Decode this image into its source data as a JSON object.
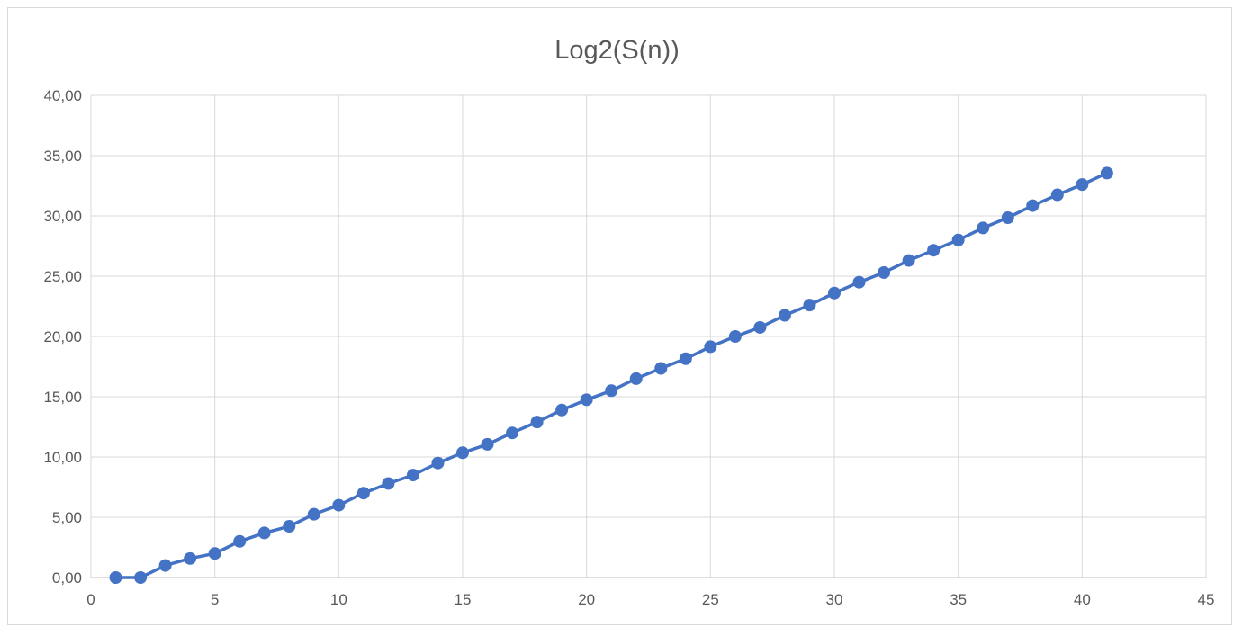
{
  "chart_data": {
    "type": "scatter",
    "title": "Log2(S(n))",
    "xlabel": "",
    "ylabel": "",
    "xlim": [
      0,
      45
    ],
    "ylim": [
      0,
      40
    ],
    "grid": true,
    "legend": "none",
    "x_ticks": [
      "0",
      "5",
      "10",
      "15",
      "20",
      "25",
      "30",
      "35",
      "40",
      "45"
    ],
    "y_ticks": [
      "0,00",
      "5,00",
      "10,00",
      "15,00",
      "20,00",
      "25,00",
      "30,00",
      "35,00",
      "40,00"
    ],
    "series": [
      {
        "color": "#4472c4",
        "marker": "circle",
        "line": true,
        "x": [
          1,
          2,
          3,
          4,
          5,
          6,
          7,
          8,
          9,
          10,
          11,
          12,
          13,
          14,
          15,
          16,
          17,
          18,
          19,
          20,
          21,
          22,
          23,
          24,
          25,
          26,
          27,
          28,
          29,
          30,
          31,
          32,
          33,
          34,
          35,
          36,
          37,
          38,
          39,
          40,
          41
        ],
        "y": [
          0.0,
          0.0,
          1.0,
          1.58,
          2.0,
          3.0,
          3.7,
          4.25,
          5.25,
          6.0,
          7.0,
          7.8,
          8.5,
          9.5,
          10.35,
          11.05,
          12.0,
          12.9,
          13.9,
          14.75,
          15.5,
          16.5,
          17.35,
          18.15,
          19.15,
          20.0,
          20.75,
          21.75,
          22.6,
          23.6,
          24.5,
          25.3,
          26.3,
          27.15,
          28.0,
          29.0,
          29.85,
          30.85,
          31.75,
          32.6,
          33.55
        ]
      }
    ]
  }
}
